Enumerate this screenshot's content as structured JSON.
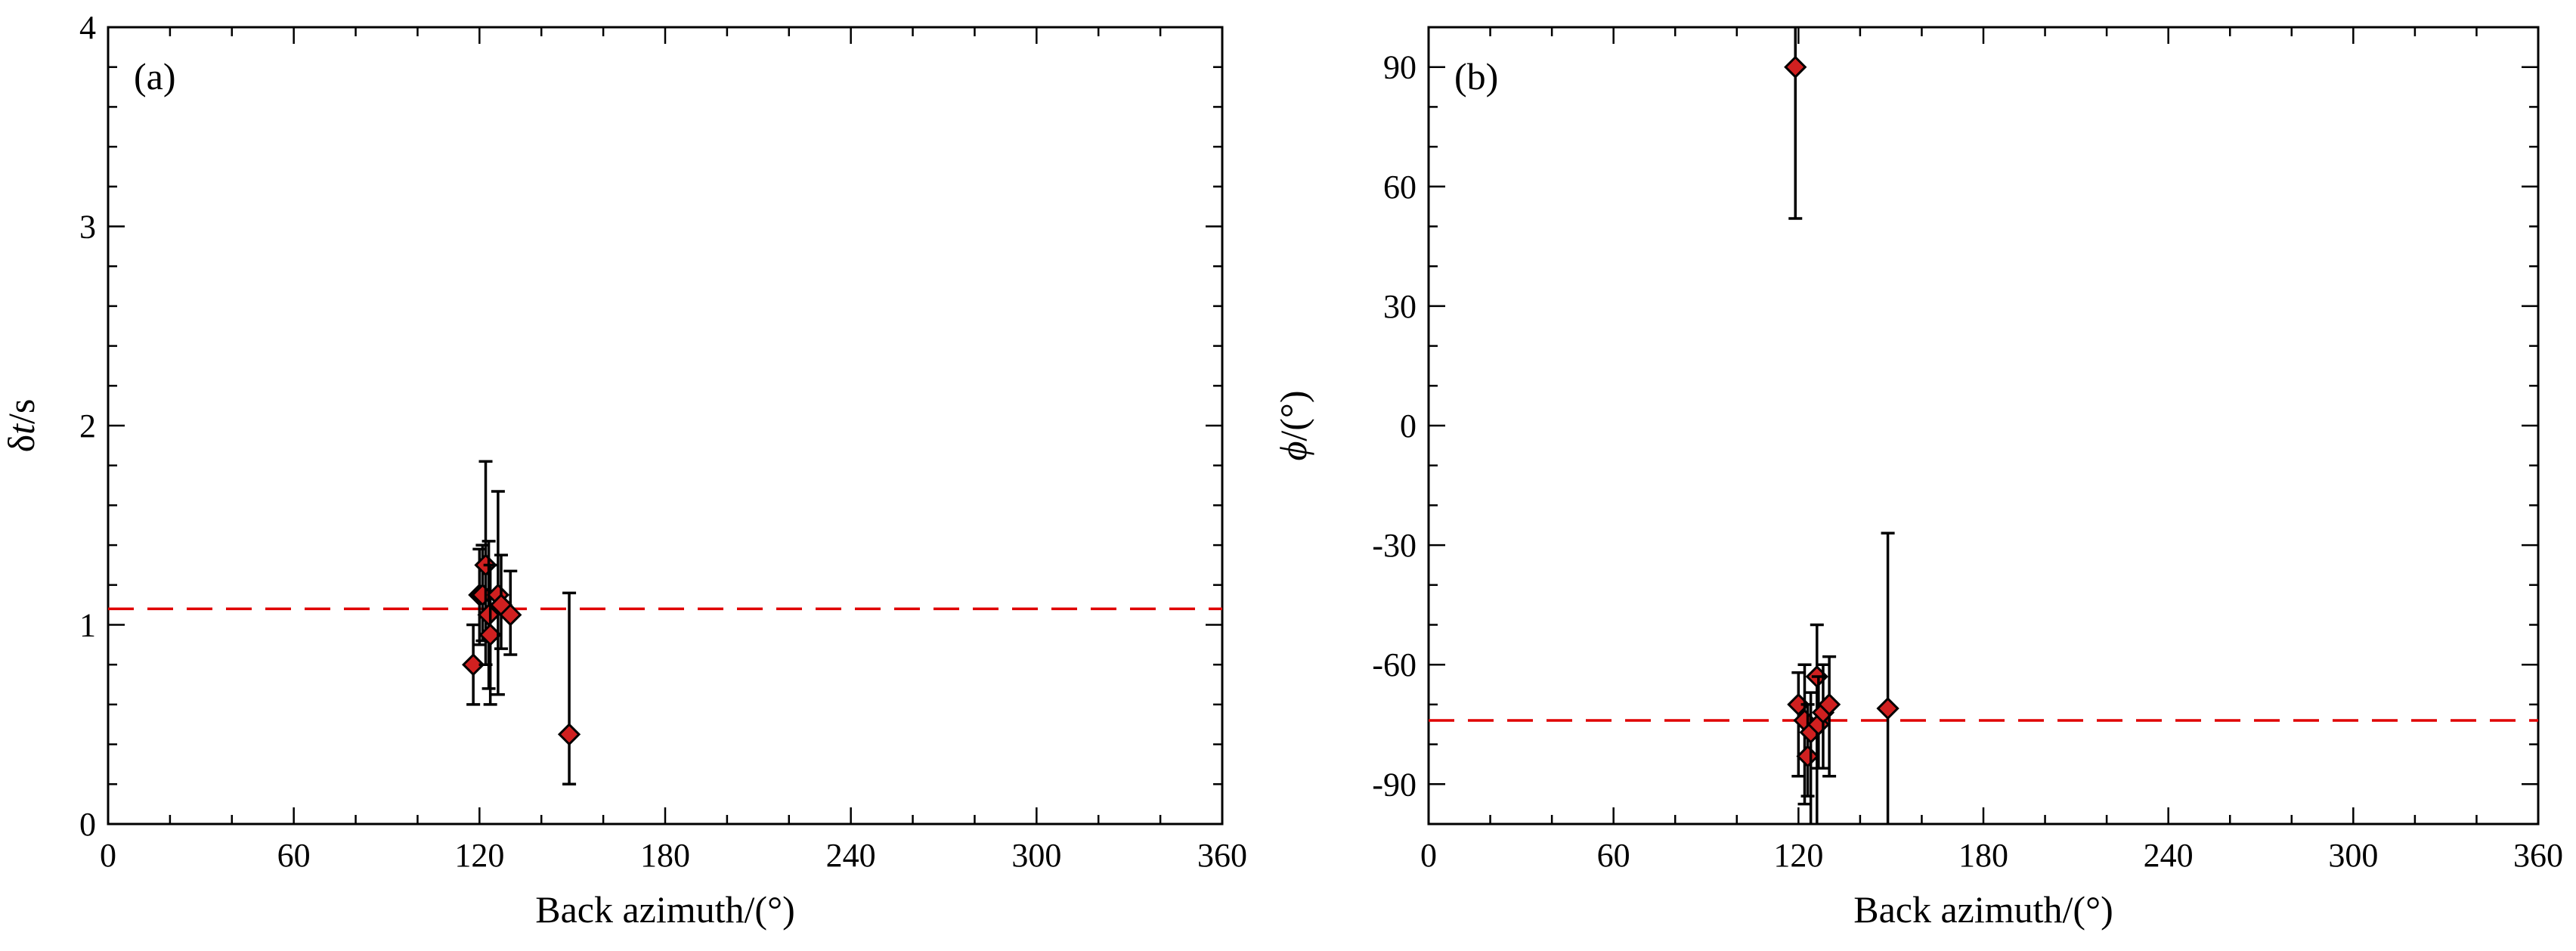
{
  "chart_data": [
    {
      "type": "scatter",
      "panel_label": "(a)",
      "xlabel": "Back azimuth/(°)",
      "ylabel_main": "δ",
      "ylabel_italic": "t",
      "ylabel_unit": "/s",
      "xlim": [
        0,
        360
      ],
      "ylim": [
        0,
        4
      ],
      "xticks": [
        0,
        60,
        120,
        180,
        240,
        300,
        360
      ],
      "yticks": [
        0,
        1,
        2,
        3,
        4
      ],
      "xtick_labels": [
        "0",
        "60",
        "120",
        "180",
        "240",
        "300",
        "360"
      ],
      "ytick_labels": [
        "0",
        "1",
        "2",
        "3",
        "4"
      ],
      "mean": 1.08,
      "mean_color": "#e00000",
      "marker_color": "#d02020",
      "points": [
        {
          "x": 118,
          "y": 0.8,
          "lo": 0.6,
          "hi": 1.0
        },
        {
          "x": 120,
          "y": 1.15,
          "lo": 0.9,
          "hi": 1.38
        },
        {
          "x": 121,
          "y": 1.15,
          "lo": 0.92,
          "hi": 1.4
        },
        {
          "x": 122,
          "y": 1.3,
          "lo": 0.8,
          "hi": 1.82
        },
        {
          "x": 123,
          "y": 1.05,
          "lo": 0.68,
          "hi": 1.42
        },
        {
          "x": 123.5,
          "y": 0.95,
          "lo": 0.6,
          "hi": 1.3
        },
        {
          "x": 126,
          "y": 1.15,
          "lo": 0.65,
          "hi": 1.67
        },
        {
          "x": 127,
          "y": 1.1,
          "lo": 0.88,
          "hi": 1.35
        },
        {
          "x": 130,
          "y": 1.05,
          "lo": 0.85,
          "hi": 1.27
        },
        {
          "x": 149,
          "y": 0.45,
          "lo": 0.2,
          "hi": 1.16
        }
      ]
    },
    {
      "type": "scatter",
      "panel_label": "(b)",
      "xlabel": "Back azimuth/(°)",
      "ylabel_main": "ϕ",
      "ylabel_italic": "",
      "ylabel_unit": "/(°)",
      "xlim": [
        0,
        360
      ],
      "ylim": [
        -100,
        100
      ],
      "xticks": [
        0,
        60,
        120,
        180,
        240,
        300,
        360
      ],
      "yticks": [
        -90,
        -60,
        -30,
        0,
        30,
        60,
        90
      ],
      "xtick_labels": [
        "0",
        "60",
        "120",
        "180",
        "240",
        "300",
        "360"
      ],
      "ytick_labels": [
        "-90",
        "-60",
        "-30",
        "0",
        "30",
        "60",
        "90"
      ],
      "mean": -74,
      "mean_color": "#e00000",
      "marker_color": "#d02020",
      "points": [
        {
          "x": 119,
          "y": 90,
          "lo": 52,
          "hi": 100
        },
        {
          "x": 120,
          "y": -70,
          "lo": -88,
          "hi": -62
        },
        {
          "x": 122,
          "y": -74,
          "lo": -95,
          "hi": -60
        },
        {
          "x": 123,
          "y": -83,
          "lo": -93,
          "hi": -70
        },
        {
          "x": 124,
          "y": -77,
          "lo": -100,
          "hi": -67
        },
        {
          "x": 126,
          "y": -63,
          "lo": -100,
          "hi": -50
        },
        {
          "x": 126.5,
          "y": -75,
          "lo": -86,
          "hi": -63
        },
        {
          "x": 128,
          "y": -72,
          "lo": -86,
          "hi": -60
        },
        {
          "x": 130,
          "y": -70,
          "lo": -88,
          "hi": -58
        },
        {
          "x": 149,
          "y": -71,
          "lo": -100,
          "hi": -27
        }
      ]
    }
  ]
}
